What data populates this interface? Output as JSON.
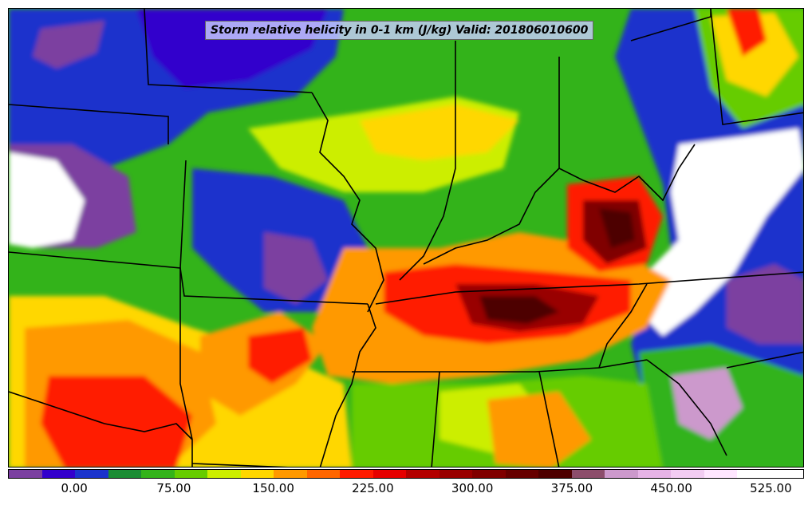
{
  "title": "Storm relative helicity in 0-1 km (J/kg) Valid: 201806010600",
  "colorbar": {
    "colors": [
      "#7b3fa0",
      "#3300cc",
      "#1a33cc",
      "#1a8c33",
      "#33b31a",
      "#66cc00",
      "#ccee00",
      "#ffd700",
      "#ff9900",
      "#ff6600",
      "#ff1a00",
      "#e60000",
      "#b30000",
      "#990000",
      "#800000",
      "#660000",
      "#4d0000",
      "#8c4d6b",
      "#cc99cc",
      "#e6b3e6",
      "#f2ccf2",
      "#ffe6ff",
      "#ffffff",
      "#ffffff"
    ],
    "tick_labels": [
      "0.00",
      "75.00",
      "150.00",
      "225.00",
      "300.00",
      "375.00",
      "450.00",
      "525.00"
    ],
    "tick_values": [
      0,
      75,
      150,
      225,
      300,
      375,
      450,
      525
    ],
    "range": [
      -50,
      550
    ]
  },
  "map": {
    "field": "Storm relative helicity in 0-1 km",
    "units": "J/kg",
    "valid": "201806010600"
  }
}
